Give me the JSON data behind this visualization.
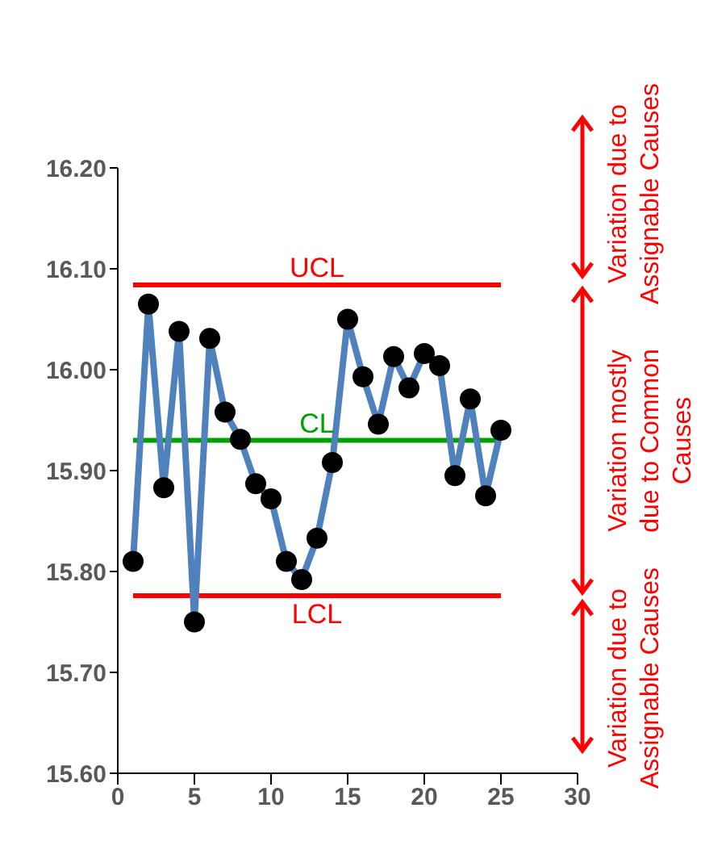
{
  "chart_data": {
    "type": "line",
    "x": [
      1,
      2,
      3,
      4,
      5,
      6,
      7,
      8,
      9,
      10,
      11,
      12,
      13,
      14,
      15,
      16,
      17,
      18,
      19,
      20,
      21,
      22,
      23,
      24,
      25
    ],
    "series": [
      {
        "color": "#4f81bd",
        "values": [
          15.81,
          16.065,
          15.883,
          16.038,
          15.75,
          16.031,
          15.958,
          15.931,
          15.887,
          15.872,
          15.81,
          15.792,
          15.833,
          15.908,
          16.05,
          15.993,
          15.946,
          16.013,
          15.982,
          16.016,
          16.004,
          15.895,
          15.971,
          15.875,
          15.94
        ]
      }
    ],
    "marker": "circle",
    "line_style": "solid",
    "grid": false,
    "legend": false,
    "xlim": [
      0,
      30
    ],
    "xticks": [
      0,
      5,
      10,
      15,
      20,
      25,
      30
    ],
    "ylim": [
      15.6,
      16.2
    ],
    "yticks": [
      {
        "value": 15.6,
        "label": "15.60"
      },
      {
        "value": 15.7,
        "label": "15.70"
      },
      {
        "value": 15.8,
        "label": "15.80"
      },
      {
        "value": 15.9,
        "label": "15.90"
      },
      {
        "value": 16.0,
        "label": "16.00"
      },
      {
        "value": 16.1,
        "label": "16.10"
      },
      {
        "value": 16.2,
        "label": "16.20"
      }
    ],
    "ref_lines": [
      {
        "axis": "y",
        "value": 16.084,
        "label": "UCL",
        "color": "#ff0000"
      },
      {
        "axis": "y",
        "value": 15.93,
        "label": "CL",
        "color": "#00a000"
      },
      {
        "axis": "y",
        "value": 15.776,
        "label": "LCL",
        "color": "#ff0000"
      }
    ],
    "annotations": [
      "Variation due to Assignable Causes",
      "Variation mostly due to Common Causes",
      "Variation due to Assignable Causes"
    ]
  }
}
